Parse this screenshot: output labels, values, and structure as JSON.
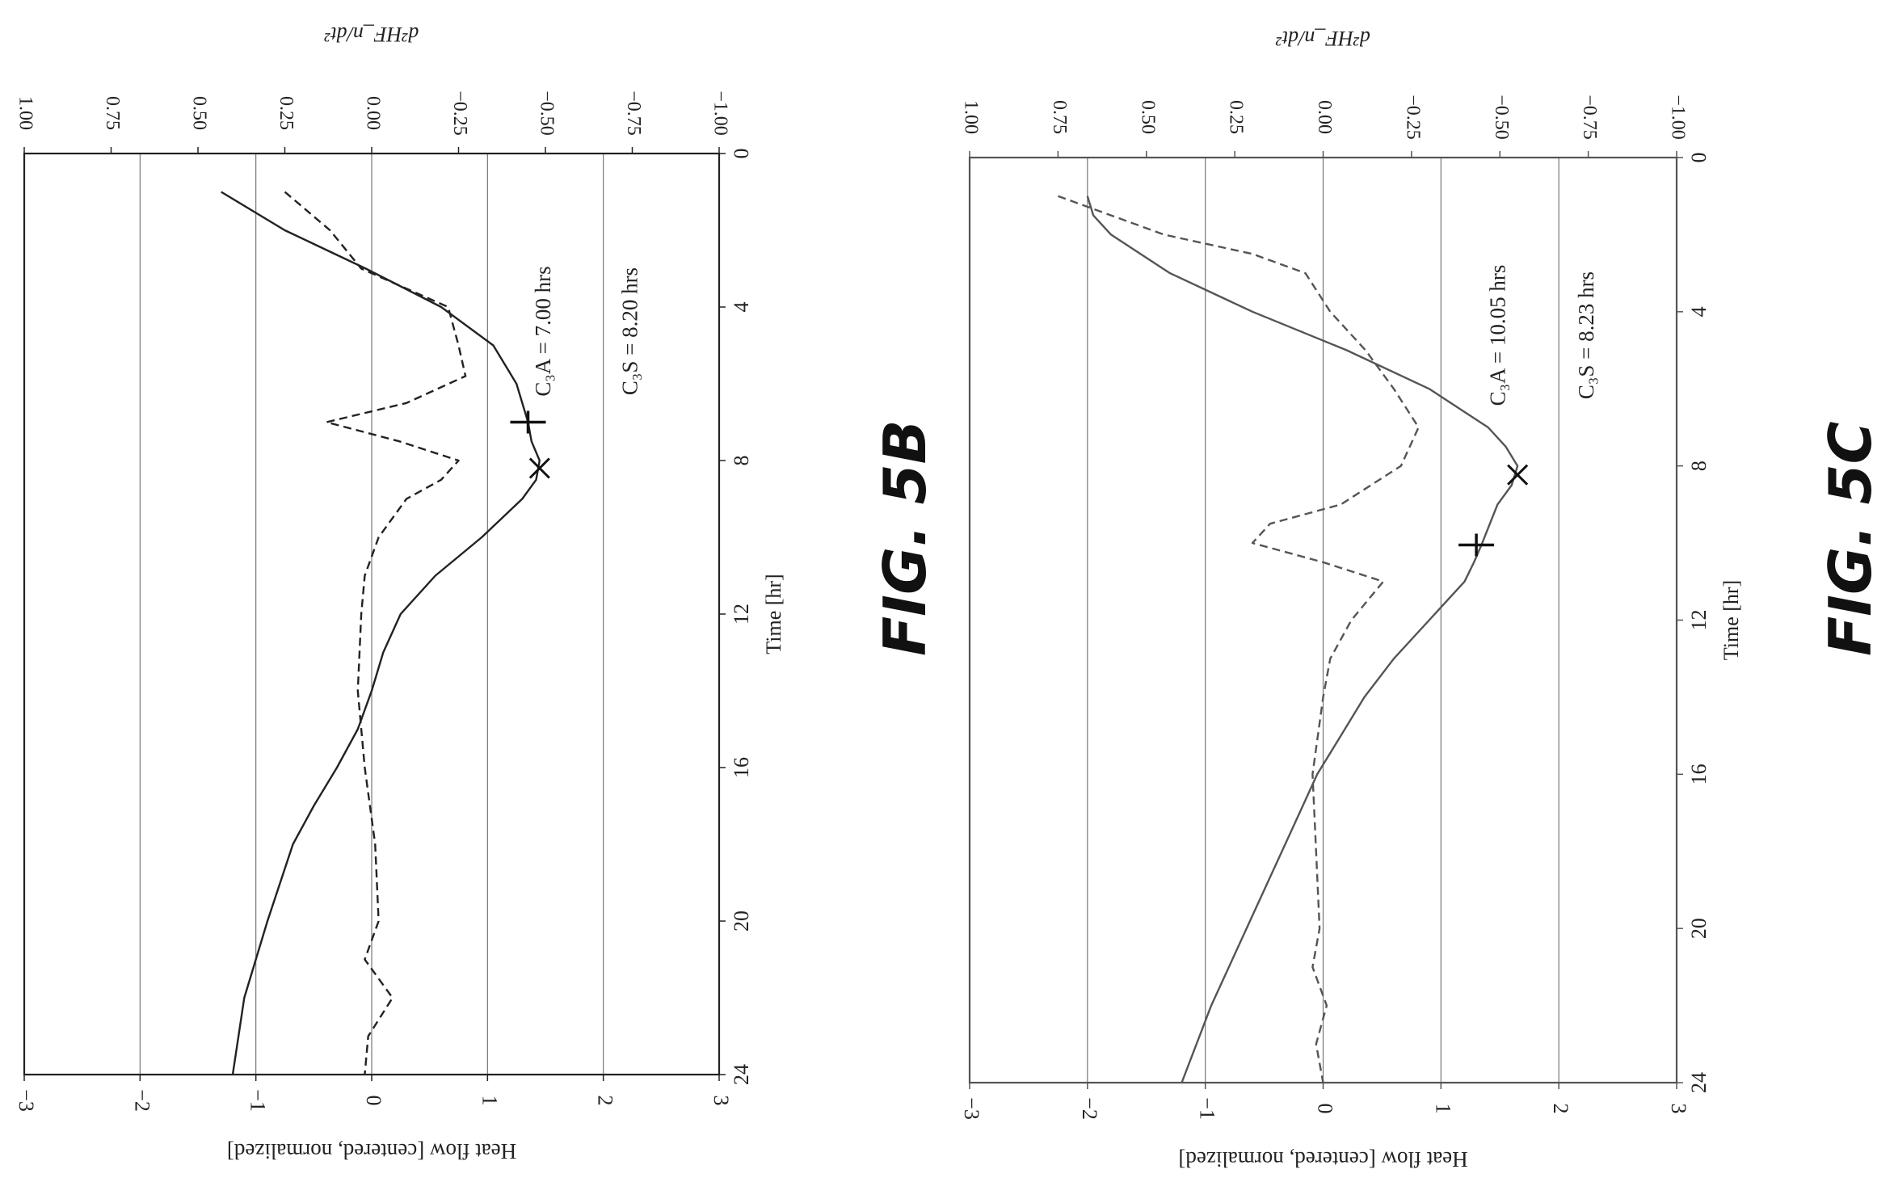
{
  "figures": {
    "fig_5b_label": "FIG. 5B",
    "fig_5c_label": "FIG. 5C"
  },
  "chart_data": [
    {
      "id": "fig5b",
      "type": "line",
      "xlabel": "Time [hr]",
      "ylabel": "Heat flow [centered, normalized]",
      "y2label": "d²HF_n/dt²",
      "xlim": [
        0,
        24
      ],
      "ylim": [
        -3,
        3
      ],
      "y2lim": [
        -1.0,
        1.0
      ],
      "xticks": [
        "0",
        "4",
        "8",
        "12",
        "16",
        "20",
        "24"
      ],
      "yticks": [
        "−3",
        "−2",
        "−1",
        "0",
        "1",
        "2",
        "3"
      ],
      "y2ticks": [
        "1.00",
        "0.75",
        "0.50",
        "0.25",
        "0.00",
        "−0.25",
        "−0.50",
        "−0.75",
        "−1.00"
      ],
      "grid": "horizontal",
      "annotations": [
        {
          "text": "C₃S = 8.20 hrs",
          "value": 2.25
        },
        {
          "text": "C₃A = 7.00 hrs",
          "value": 1.5
        }
      ],
      "markers": [
        {
          "type": "x",
          "x": 8.2,
          "y": 1.45
        },
        {
          "type": "plus",
          "x": 7.0,
          "y": 1.35
        }
      ],
      "series": [
        {
          "style": "solid",
          "axis": "left",
          "x": [
            1,
            2,
            3,
            4,
            5,
            6,
            7,
            7.5,
            8,
            8.5,
            9,
            10,
            11,
            12,
            13,
            14,
            15,
            16,
            17,
            18,
            20,
            22,
            24
          ],
          "y": [
            -1.3,
            -0.75,
            -0.05,
            0.6,
            1.05,
            1.25,
            1.35,
            1.38,
            1.45,
            1.42,
            1.3,
            0.95,
            0.55,
            0.25,
            0.1,
            0.0,
            -0.12,
            -0.3,
            -0.5,
            -0.68,
            -0.9,
            -1.1,
            -1.2
          ]
        },
        {
          "style": "dashed",
          "axis": "right",
          "x": [
            1,
            2,
            3,
            4,
            5,
            5.8,
            6.5,
            7.0,
            7.5,
            8.0,
            8.5,
            9,
            10,
            11,
            12,
            14,
            16,
            18,
            20,
            21,
            22,
            23,
            24
          ],
          "y": [
            0.25,
            0.12,
            0.03,
            -0.22,
            -0.25,
            -0.27,
            -0.1,
            0.13,
            -0.08,
            -0.25,
            -0.2,
            -0.1,
            -0.02,
            0.02,
            0.03,
            0.04,
            0.02,
            -0.01,
            -0.02,
            0.02,
            -0.06,
            0.01,
            0.02
          ]
        }
      ]
    },
    {
      "id": "fig5c",
      "type": "line",
      "xlabel": "Time [hr]",
      "ylabel": "Heat flow [centered, normalized]",
      "y2label": "d²HF_n/dt²",
      "xlim": [
        0,
        24
      ],
      "ylim": [
        -3,
        3
      ],
      "y2lim": [
        -1.0,
        1.0
      ],
      "xticks": [
        "0",
        "4",
        "8",
        "12",
        "16",
        "20",
        "24"
      ],
      "yticks": [
        "−3",
        "−2",
        "−1",
        "0",
        "1",
        "2",
        "3"
      ],
      "y2ticks": [
        "1.00",
        "0.75",
        "0.50",
        "0.25",
        "0.00",
        "−0.25",
        "−0.50",
        "−0.75",
        "−1.00"
      ],
      "grid": "horizontal",
      "annotations": [
        {
          "text": "C₃S = 8.23 hrs",
          "value": 2.25
        },
        {
          "text": "C₃A = 10.05 hrs",
          "value": 1.5
        }
      ],
      "markers": [
        {
          "type": "x",
          "x": 8.23,
          "y": 1.65
        },
        {
          "type": "plus",
          "x": 10.05,
          "y": 1.3
        }
      ],
      "series": [
        {
          "style": "solid",
          "axis": "left",
          "x": [
            1,
            1.5,
            2,
            3,
            4,
            5,
            6,
            7,
            7.5,
            8,
            8.5,
            9,
            10,
            10.5,
            11,
            12,
            13,
            14,
            15,
            16,
            18,
            20,
            22,
            24
          ],
          "y": [
            -2.0,
            -1.95,
            -1.8,
            -1.3,
            -0.6,
            0.2,
            0.9,
            1.4,
            1.55,
            1.65,
            1.6,
            1.48,
            1.35,
            1.28,
            1.2,
            0.9,
            0.6,
            0.35,
            0.15,
            -0.05,
            -0.35,
            -0.65,
            -0.95,
            -1.2
          ]
        },
        {
          "style": "dashed",
          "axis": "right",
          "x": [
            1,
            2,
            2.5,
            3,
            4,
            5,
            6,
            7,
            8,
            9,
            9.5,
            10,
            10.5,
            11,
            12,
            13,
            14,
            16,
            18,
            20,
            21,
            22,
            23,
            24
          ],
          "y": [
            0.75,
            0.45,
            0.2,
            0.05,
            -0.02,
            -0.12,
            -0.2,
            -0.27,
            -0.22,
            -0.05,
            0.15,
            0.2,
            0.0,
            -0.17,
            -0.08,
            -0.02,
            0.0,
            0.03,
            0.02,
            0.01,
            0.03,
            -0.01,
            0.02,
            0.0
          ]
        }
      ]
    }
  ]
}
